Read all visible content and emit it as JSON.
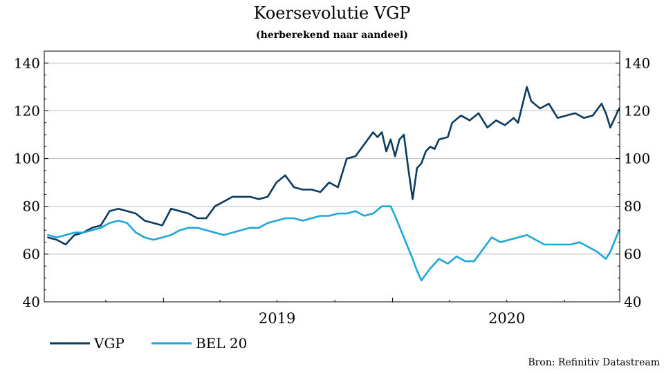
{
  "chart_data": {
    "type": "line",
    "title": "Koersevolutie VGP",
    "subtitle": "(herberekend naar aandeel)",
    "ylim": [
      40,
      145
    ],
    "y_ticks": [
      40,
      60,
      80,
      100,
      120,
      140
    ],
    "x_range": [
      "2018-06-25",
      "2020-12-28"
    ],
    "x_year_labels": [
      {
        "label": "2019",
        "date": "2019-07-01"
      },
      {
        "label": "2020",
        "date": "2020-07-01"
      }
    ],
    "x_year_boundaries": [
      "2019-01-01",
      "2020-01-01"
    ],
    "x_minor_ticks": [
      "2018-10-01",
      "2019-04-01",
      "2019-07-01",
      "2019-10-01",
      "2020-04-01",
      "2020-07-01",
      "2020-10-01"
    ],
    "grid": true,
    "legend_position": "bottom-left",
    "source": "Bron: Refinitiv Datastream",
    "series": [
      {
        "name": "VGP",
        "color": "#0b3a5f",
        "points": [
          [
            "2018-07-01",
            67
          ],
          [
            "2018-07-15",
            66
          ],
          [
            "2018-07-29",
            64
          ],
          [
            "2018-08-12",
            68
          ],
          [
            "2018-08-26",
            69
          ],
          [
            "2018-09-09",
            71
          ],
          [
            "2018-09-23",
            72
          ],
          [
            "2018-10-07",
            78
          ],
          [
            "2018-10-21",
            79
          ],
          [
            "2018-11-04",
            78
          ],
          [
            "2018-11-18",
            77
          ],
          [
            "2018-12-02",
            74
          ],
          [
            "2018-12-16",
            73
          ],
          [
            "2018-12-30",
            72
          ],
          [
            "2019-01-13",
            79
          ],
          [
            "2019-01-27",
            78
          ],
          [
            "2019-02-10",
            77
          ],
          [
            "2019-02-24",
            75
          ],
          [
            "2019-03-10",
            75
          ],
          [
            "2019-03-24",
            80
          ],
          [
            "2019-04-07",
            82
          ],
          [
            "2019-04-21",
            84
          ],
          [
            "2019-05-05",
            84
          ],
          [
            "2019-05-19",
            84
          ],
          [
            "2019-06-02",
            83
          ],
          [
            "2019-06-16",
            84
          ],
          [
            "2019-06-30",
            90
          ],
          [
            "2019-07-14",
            93
          ],
          [
            "2019-07-28",
            88
          ],
          [
            "2019-08-11",
            87
          ],
          [
            "2019-08-25",
            87
          ],
          [
            "2019-09-08",
            86
          ],
          [
            "2019-09-22",
            90
          ],
          [
            "2019-10-06",
            88
          ],
          [
            "2019-10-20",
            100
          ],
          [
            "2019-11-03",
            101
          ],
          [
            "2019-11-17",
            106
          ],
          [
            "2019-12-01",
            111
          ],
          [
            "2019-12-08",
            109
          ],
          [
            "2019-12-15",
            111
          ],
          [
            "2019-12-22",
            103
          ],
          [
            "2019-12-29",
            108
          ],
          [
            "2020-01-05",
            101
          ],
          [
            "2020-01-12",
            108
          ],
          [
            "2020-01-19",
            110
          ],
          [
            "2020-01-26",
            96
          ],
          [
            "2020-02-02",
            83
          ],
          [
            "2020-02-09",
            96
          ],
          [
            "2020-02-16",
            98
          ],
          [
            "2020-02-23",
            103
          ],
          [
            "2020-03-01",
            105
          ],
          [
            "2020-03-08",
            104
          ],
          [
            "2020-03-15",
            108
          ],
          [
            "2020-03-29",
            109
          ],
          [
            "2020-04-05",
            115
          ],
          [
            "2020-04-19",
            118
          ],
          [
            "2020-05-03",
            116
          ],
          [
            "2020-05-17",
            119
          ],
          [
            "2020-05-31",
            113
          ],
          [
            "2020-06-14",
            116
          ],
          [
            "2020-06-28",
            114
          ],
          [
            "2020-07-12",
            117
          ],
          [
            "2020-07-19",
            115
          ],
          [
            "2020-08-02",
            130
          ],
          [
            "2020-08-09",
            124
          ],
          [
            "2020-08-23",
            121
          ],
          [
            "2020-09-06",
            123
          ],
          [
            "2020-09-20",
            117
          ],
          [
            "2020-10-04",
            118
          ],
          [
            "2020-10-18",
            119
          ],
          [
            "2020-11-01",
            117
          ],
          [
            "2020-11-15",
            118
          ],
          [
            "2020-11-29",
            123
          ],
          [
            "2020-12-06",
            119
          ],
          [
            "2020-12-13",
            113
          ],
          [
            "2020-12-27",
            121
          ]
        ]
      },
      {
        "name": "BEL 20",
        "color": "#1ea6d9",
        "points": [
          [
            "2018-07-01",
            68
          ],
          [
            "2018-07-15",
            67
          ],
          [
            "2018-07-29",
            68
          ],
          [
            "2018-08-12",
            69
          ],
          [
            "2018-08-26",
            69
          ],
          [
            "2018-09-09",
            70
          ],
          [
            "2018-09-23",
            71
          ],
          [
            "2018-10-07",
            73
          ],
          [
            "2018-10-21",
            74
          ],
          [
            "2018-11-04",
            73
          ],
          [
            "2018-11-18",
            69
          ],
          [
            "2018-12-02",
            67
          ],
          [
            "2018-12-16",
            66
          ],
          [
            "2018-12-30",
            67
          ],
          [
            "2019-01-13",
            68
          ],
          [
            "2019-01-27",
            70
          ],
          [
            "2019-02-10",
            71
          ],
          [
            "2019-02-24",
            71
          ],
          [
            "2019-03-10",
            70
          ],
          [
            "2019-03-24",
            69
          ],
          [
            "2019-04-07",
            68
          ],
          [
            "2019-04-21",
            69
          ],
          [
            "2019-05-05",
            70
          ],
          [
            "2019-05-19",
            71
          ],
          [
            "2019-06-02",
            71
          ],
          [
            "2019-06-16",
            73
          ],
          [
            "2019-06-30",
            74
          ],
          [
            "2019-07-14",
            75
          ],
          [
            "2019-07-28",
            75
          ],
          [
            "2019-08-11",
            74
          ],
          [
            "2019-08-25",
            75
          ],
          [
            "2019-09-08",
            76
          ],
          [
            "2019-09-22",
            76
          ],
          [
            "2019-10-06",
            77
          ],
          [
            "2019-10-20",
            77
          ],
          [
            "2019-11-03",
            78
          ],
          [
            "2019-11-17",
            76
          ],
          [
            "2019-12-01",
            77
          ],
          [
            "2019-12-15",
            80
          ],
          [
            "2019-12-29",
            80
          ],
          [
            "2020-01-05",
            76
          ],
          [
            "2020-01-19",
            67
          ],
          [
            "2020-02-02",
            58
          ],
          [
            "2020-02-09",
            53
          ],
          [
            "2020-02-16",
            49
          ],
          [
            "2020-03-01",
            54
          ],
          [
            "2020-03-15",
            58
          ],
          [
            "2020-03-29",
            56
          ],
          [
            "2020-04-12",
            59
          ],
          [
            "2020-04-26",
            57
          ],
          [
            "2020-05-10",
            57
          ],
          [
            "2020-05-24",
            62
          ],
          [
            "2020-06-07",
            67
          ],
          [
            "2020-06-21",
            65
          ],
          [
            "2020-07-05",
            66
          ],
          [
            "2020-07-19",
            67
          ],
          [
            "2020-08-02",
            68
          ],
          [
            "2020-08-16",
            66
          ],
          [
            "2020-08-30",
            64
          ],
          [
            "2020-09-13",
            64
          ],
          [
            "2020-09-27",
            64
          ],
          [
            "2020-10-11",
            64
          ],
          [
            "2020-10-25",
            65
          ],
          [
            "2020-11-08",
            63
          ],
          [
            "2020-11-22",
            61
          ],
          [
            "2020-12-06",
            58
          ],
          [
            "2020-12-13",
            61
          ],
          [
            "2020-12-27",
            70
          ]
        ]
      }
    ]
  }
}
